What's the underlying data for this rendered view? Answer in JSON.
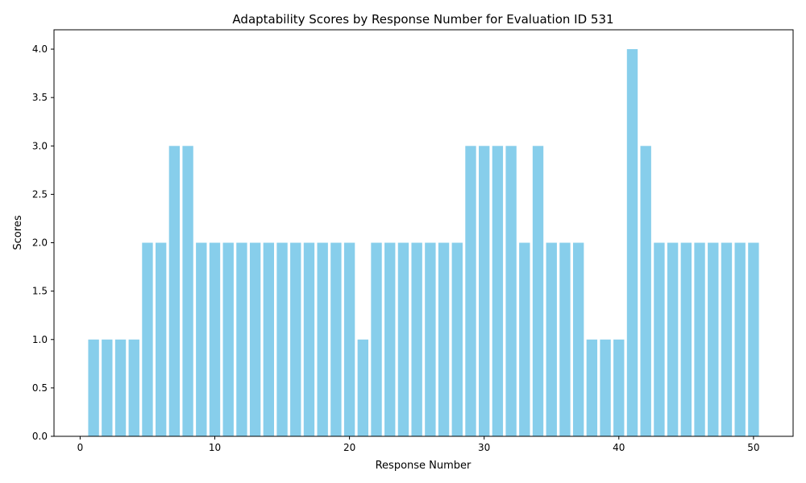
{
  "chart_data": {
    "type": "bar",
    "title": "Adaptability Scores by Response Number for Evaluation ID 531",
    "xlabel": "Response Number",
    "ylabel": "Scores",
    "bar_color": "#87ceeb",
    "x": [
      1,
      2,
      3,
      4,
      5,
      6,
      7,
      8,
      9,
      10,
      11,
      12,
      13,
      14,
      15,
      16,
      17,
      18,
      19,
      20,
      21,
      22,
      23,
      24,
      25,
      26,
      27,
      28,
      29,
      30,
      31,
      32,
      33,
      34,
      35,
      36,
      37,
      38,
      39,
      40,
      41,
      42,
      43,
      44,
      45,
      46,
      47,
      48,
      49,
      50
    ],
    "values": [
      1,
      1,
      1,
      1,
      2,
      2,
      3,
      3,
      2,
      2,
      2,
      2,
      2,
      2,
      2,
      2,
      2,
      2,
      2,
      2,
      1,
      2,
      2,
      2,
      2,
      2,
      2,
      2,
      3,
      3,
      3,
      3,
      2,
      3,
      2,
      2,
      2,
      1,
      1,
      1,
      4,
      3,
      2,
      2,
      2,
      2,
      2,
      2,
      2,
      2
    ],
    "xlim": [
      -1.94,
      52.94
    ],
    "ylim": [
      0,
      4.2
    ],
    "xticks": [
      0,
      10,
      20,
      30,
      40,
      50
    ],
    "xtick_labels": [
      "0",
      "10",
      "20",
      "30",
      "40",
      "50"
    ],
    "yticks": [
      0,
      0.5,
      1,
      1.5,
      2,
      2.5,
      3,
      3.5,
      4
    ],
    "ytick_labels": [
      "0.0",
      "0.5",
      "1.0",
      "1.5",
      "2.0",
      "2.5",
      "3.0",
      "3.5",
      "4.0"
    ],
    "grid": false,
    "legend": "none"
  }
}
